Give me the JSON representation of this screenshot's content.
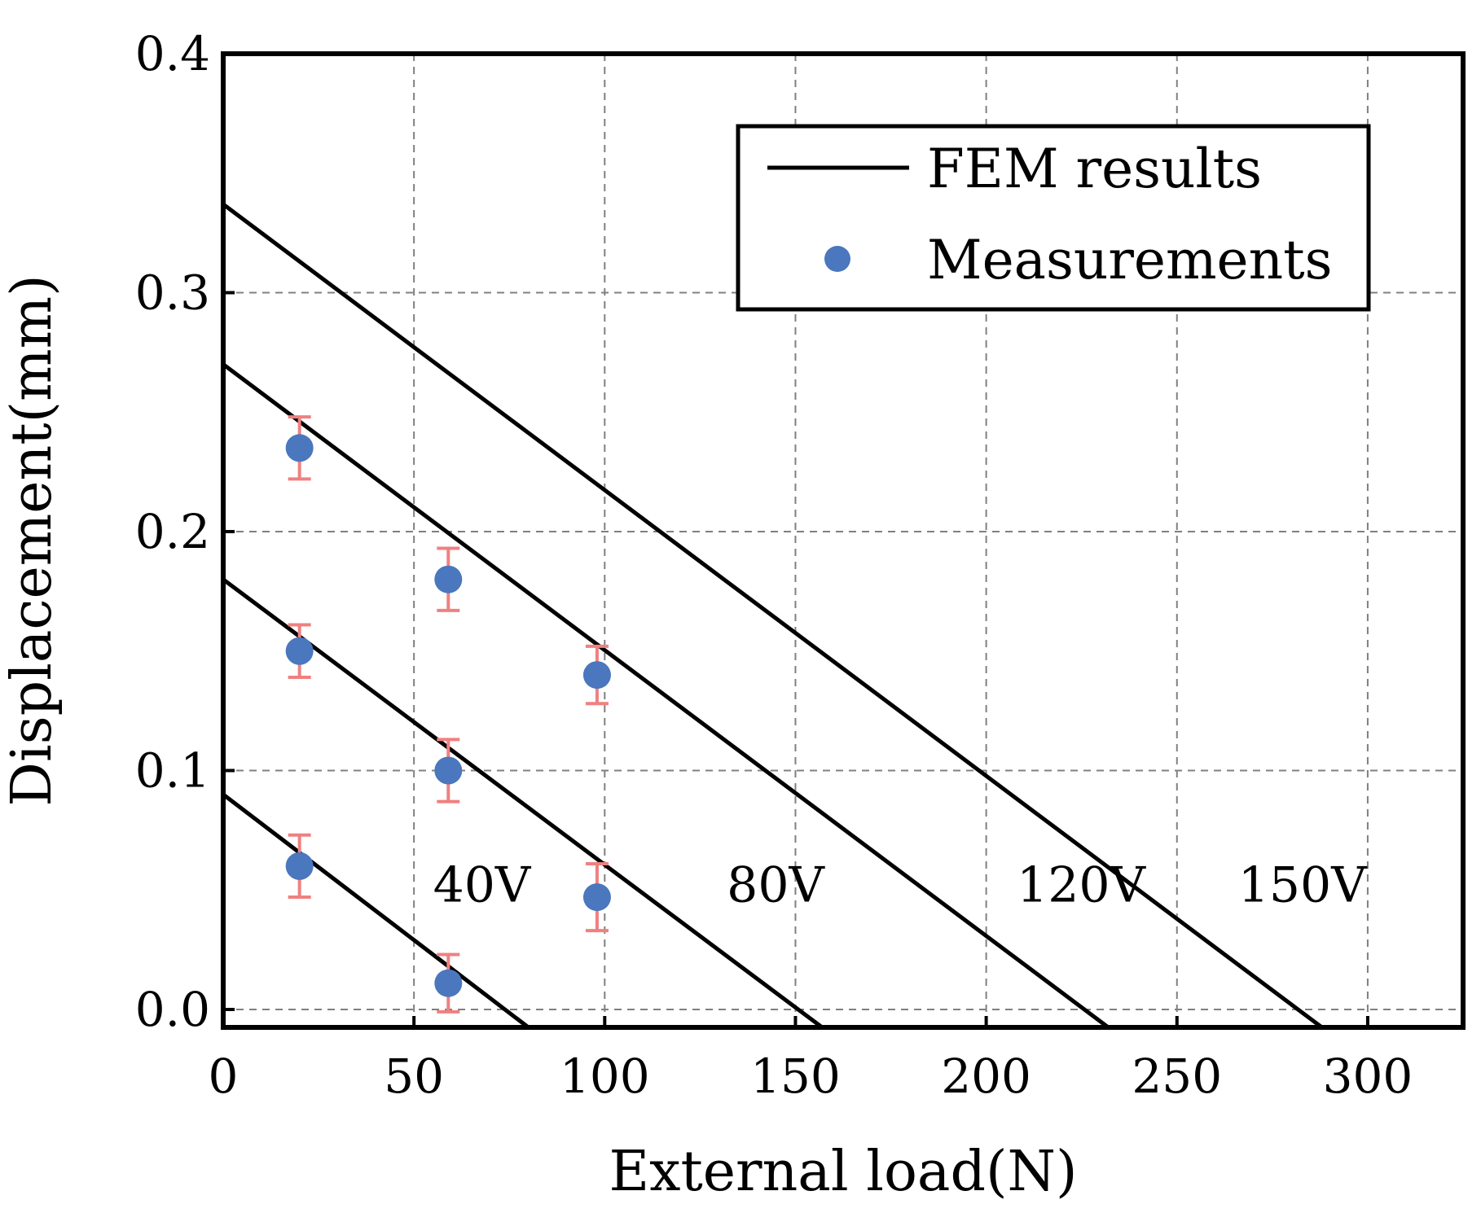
{
  "chart_data": {
    "type": "scatter",
    "xlabel": "External load(N)",
    "ylabel": "Displacement(mm)",
    "xlim": [
      0,
      325
    ],
    "ylim": [
      -0.0075,
      0.4
    ],
    "xticks": [
      0,
      50,
      100,
      150,
      200,
      250,
      300
    ],
    "yticks": [
      0.0,
      0.1,
      0.2,
      0.3,
      0.4
    ],
    "xtick_labels": [
      "0",
      "50",
      "100",
      "150",
      "200",
      "250",
      "300"
    ],
    "ytick_labels": [
      "0.0",
      "0.1",
      "0.2",
      "0.3",
      "0.4"
    ],
    "grid": true,
    "legend": {
      "position": "top-right",
      "entries": [
        "FEM results",
        "Measurements"
      ]
    },
    "colors": {
      "line": "#000000",
      "marker": "#4a77bd",
      "error_bar": "#f08080",
      "grid": "#808080"
    },
    "fem_lines": [
      {
        "name": "40V",
        "x": [
          0,
          80
        ],
        "y": [
          0.09,
          -0.0075
        ]
      },
      {
        "name": "80V",
        "x": [
          0,
          157
        ],
        "y": [
          0.18,
          -0.0075
        ]
      },
      {
        "name": "120V",
        "x": [
          0,
          232
        ],
        "y": [
          0.27,
          -0.0075
        ]
      },
      {
        "name": "150V",
        "x": [
          0,
          288
        ],
        "y": [
          0.337,
          -0.0075
        ]
      }
    ],
    "measurements": [
      {
        "x": 20,
        "y": 0.235,
        "err": 0.013
      },
      {
        "x": 20,
        "y": 0.15,
        "err": 0.011
      },
      {
        "x": 20,
        "y": 0.06,
        "err": 0.013
      },
      {
        "x": 59,
        "y": 0.18,
        "err": 0.013
      },
      {
        "x": 59,
        "y": 0.1,
        "err": 0.013
      },
      {
        "x": 59,
        "y": 0.011,
        "err": 0.012
      },
      {
        "x": 98,
        "y": 0.14,
        "err": 0.012
      },
      {
        "x": 98,
        "y": 0.047,
        "err": 0.014
      }
    ],
    "annotations": [
      {
        "text": "40V",
        "x": 55,
        "y": 0.052
      },
      {
        "text": "80V",
        "x": 132,
        "y": 0.052
      },
      {
        "text": "120V",
        "x": 208,
        "y": 0.052
      },
      {
        "text": "150V",
        "x": 266,
        "y": 0.052
      }
    ]
  }
}
